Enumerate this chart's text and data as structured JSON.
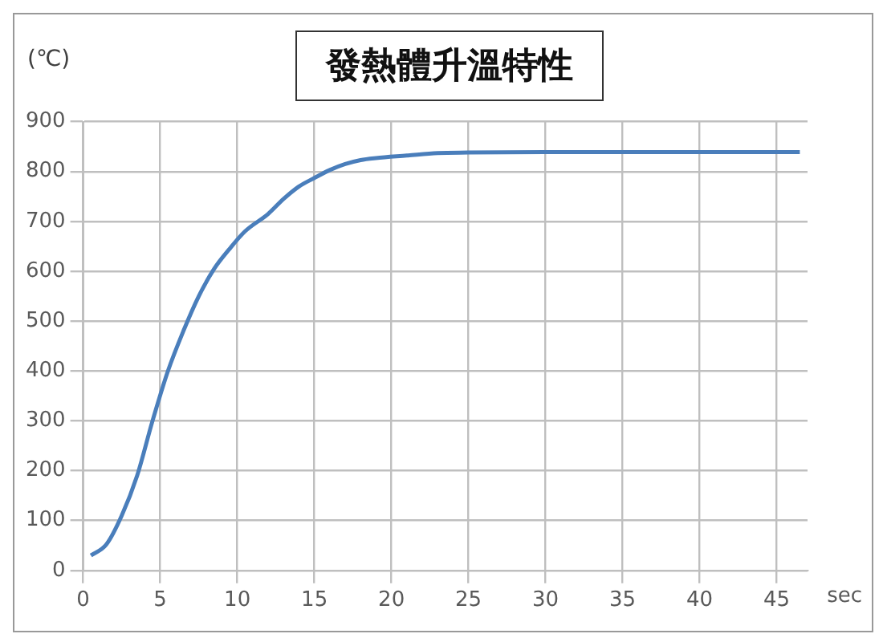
{
  "chart_data": {
    "type": "line",
    "title": "發熱體升溫特性",
    "xlabel": "sec",
    "ylabel": "(℃)",
    "x": [
      0.5,
      1.5,
      2.5,
      3.5,
      4.5,
      5.5,
      6.5,
      7.5,
      8.5,
      9.5,
      10.5,
      12,
      13,
      14,
      15,
      16,
      17,
      18,
      19,
      21,
      23,
      25,
      30,
      40,
      46.5
    ],
    "series": [
      {
        "color": "#4a7ebb",
        "values": [
          30,
          52,
          110,
          190,
          300,
          400,
          480,
          550,
          605,
          645,
          680,
          715,
          745,
          770,
          787,
          803,
          815,
          823,
          827,
          832,
          837,
          838,
          839,
          839,
          839
        ]
      }
    ],
    "xlim": [
      0,
      47
    ],
    "xticks": [
      0,
      5,
      10,
      15,
      20,
      25,
      30,
      35,
      40,
      45
    ],
    "ylim": [
      0,
      900
    ],
    "yticks": [
      0,
      100,
      200,
      300,
      400,
      500,
      600,
      700,
      800,
      900
    ],
    "grid": true,
    "legend": false,
    "marker": "none",
    "line_style": "solid"
  }
}
